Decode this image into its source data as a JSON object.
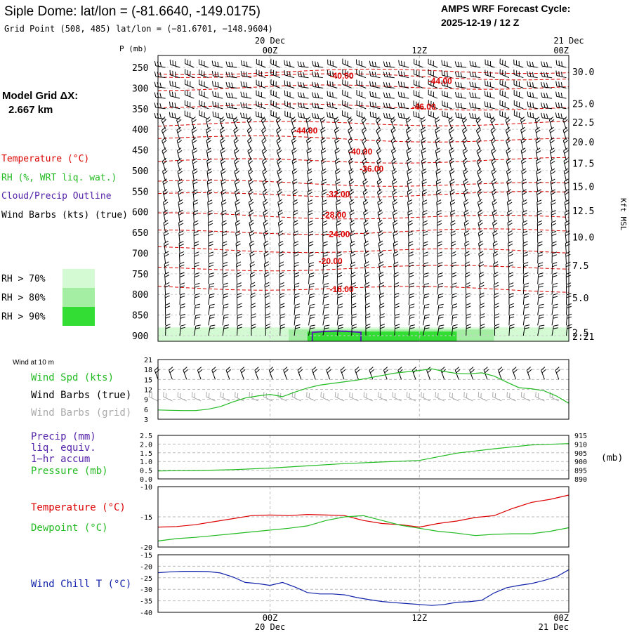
{
  "header": {
    "title": "Siple Dome:  lat/lon = (-81.6640, -149.0175)",
    "subtitle": "Grid Point (508, 485) lat/lon = (−81.6701, −148.9604)",
    "cycle_line1": "AMPS WRF Forecast Cycle:",
    "cycle_line2": "2025-12-19 / 12  Z"
  },
  "model_grid": {
    "label": "Model Grid ΔX:",
    "value": "2.667 km"
  },
  "legend": {
    "temperature": "Temperature (°C)",
    "rh": "RH (%, WRT liq. wat.)",
    "cloud": "Cloud/Precip Outline",
    "wind": "Wind Barbs (kts) (true)",
    "rh70": "RH > 70%",
    "rh80": "RH > 80%",
    "rh90": "RH > 90%"
  },
  "time_axis": {
    "top_labels": [
      {
        "date": "20 Dec",
        "time": "00Z",
        "t": 12
      },
      {
        "date": "",
        "time": "12Z",
        "t": 24
      },
      {
        "date": "21 Dec",
        "time": "00Z",
        "t": 36
      }
    ],
    "bottom_labels": [
      {
        "time": "00Z",
        "date": "20 Dec",
        "t": 12
      },
      {
        "time": "12Z",
        "date": "",
        "t": 24
      },
      {
        "time": "00Z",
        "date": "21 Dec",
        "t": 36
      }
    ]
  },
  "colors": {
    "temp": "#dd0000",
    "green": "#22bb22",
    "purple": "#5522aa",
    "blue": "#1122aa",
    "grey": "#aaaaaa",
    "rh70": "#d4fad4",
    "rh80": "#a4eea4",
    "rh90": "#33dd33"
  },
  "chart_data": [
    {
      "type": "contour",
      "name": "time-height cross section",
      "ylabel": "P (mb)",
      "y2label": "Kft MSL",
      "xlim": [
        3,
        36
      ],
      "ylim": [
        250,
        900
      ],
      "pressure_ticks": [
        "250",
        "300",
        "350",
        "400",
        "450",
        "500",
        "550",
        "600",
        "650",
        "700",
        "750",
        "800",
        "850",
        "900"
      ],
      "height_ticks": [
        {
          "label": "30.0",
          "p": 260
        },
        {
          "label": "25.0",
          "p": 338
        },
        {
          "label": "22.5",
          "p": 383
        },
        {
          "label": "20.0",
          "p": 430
        },
        {
          "label": "17.5",
          "p": 482
        },
        {
          "label": "15.0",
          "p": 538
        },
        {
          "label": "12.5",
          "p": 597
        },
        {
          "label": "10.0",
          "p": 661
        },
        {
          "label": "7.5",
          "p": 730
        },
        {
          "label": "5.0",
          "p": 808
        },
        {
          "label": "2.5",
          "p": 892
        },
        {
          "label": "2.21",
          "p": 902
        }
      ],
      "contour_labels": [
        {
          "text": "-40.00",
          "t": 16.8,
          "p": 270
        },
        {
          "text": "-44.00",
          "t": 24.7,
          "p": 283
        },
        {
          "text": "-46.00",
          "t": 23.4,
          "p": 345
        },
        {
          "text": "-44.00",
          "t": 13.9,
          "p": 403
        },
        {
          "text": "-40.00",
          "t": 18.3,
          "p": 454
        },
        {
          "text": "-36.00",
          "t": 19.2,
          "p": 496
        },
        {
          "text": "-32.00",
          "t": 16.5,
          "p": 557
        },
        {
          "text": "-28.00",
          "t": 16.2,
          "p": 607
        },
        {
          "text": "-24.00",
          "t": 16.5,
          "p": 654
        },
        {
          "text": "-20.00",
          "t": 15.9,
          "p": 720
        },
        {
          "text": "-16.00",
          "t": 16.8,
          "p": 788
        }
      ],
      "isotherm_pressures": [
        262,
        268,
        300,
        342,
        388,
        420,
        478,
        528,
        560,
        608,
        650,
        690,
        738,
        782
      ],
      "rh_band": {
        "from_t": 3,
        "to_t": 36,
        "p_top": 880,
        "p_bottom": 905
      },
      "cloud_outline": {
        "from_t": 15.4,
        "to_t": 19.3
      }
    },
    {
      "type": "line",
      "name": "wind at 10 m",
      "label": "Wind at 10 m",
      "series_labels": {
        "spd": "Wind Spd (kts)",
        "barbs": "Wind Barbs (true)",
        "grid": "Wind Barbs (grid)"
      },
      "ylim": [
        3,
        21
      ],
      "yticks": [
        "3",
        "6",
        "9",
        "12",
        "15",
        "18",
        "21"
      ],
      "t": [
        3,
        4,
        5,
        6,
        7,
        8,
        9,
        10,
        11,
        12,
        13,
        14,
        15,
        16,
        17,
        18,
        19,
        20,
        21,
        22,
        23,
        24,
        25,
        26,
        27,
        28,
        29,
        30,
        31,
        32,
        33,
        34,
        35,
        36
      ],
      "wind_speed": [
        5.8,
        5.7,
        5.6,
        5.6,
        6.0,
        6.8,
        8.2,
        9.4,
        10.0,
        10.5,
        9.8,
        11.2,
        12.4,
        13.3,
        13.8,
        14.3,
        14.8,
        15.5,
        16.2,
        16.9,
        17.3,
        17.7,
        18.2,
        17.4,
        16.8,
        16.7,
        17.0,
        16.0,
        14.2,
        12.5,
        12.2,
        11.6,
        10.0,
        7.8
      ]
    },
    {
      "type": "line",
      "name": "precip and pressure",
      "labels": {
        "precip": "Precip (mm)",
        "liq": "liq. equiv.",
        "accum": "1−hr accum",
        "pressure": "Pressure (mb)",
        "unit": "(mb)"
      },
      "ylim": [
        0,
        2.5
      ],
      "yticks": [
        "0.0",
        "0.5",
        "1.0",
        "1.5",
        "2.0",
        "2.5"
      ],
      "y2lim": [
        890,
        915
      ],
      "y2ticks": [
        "890",
        "895",
        "900",
        "905",
        "910",
        "915"
      ],
      "t": [
        3,
        6,
        9,
        12,
        15,
        18,
        21,
        24,
        27,
        30,
        33,
        36
      ],
      "pressure_mb": [
        894.6,
        894.8,
        895.3,
        896.2,
        897.5,
        898.8,
        899.7,
        900.6,
        904.8,
        907.3,
        909.5,
        910.3
      ]
    },
    {
      "type": "line",
      "name": "temperature and dewpoint",
      "labels": {
        "temp": "Temperature (°C)",
        "dew": "Dewpoint (°C)"
      },
      "ylim": [
        -20,
        -10
      ],
      "yticks": [
        {
          "v": -10,
          "label": "-10"
        },
        {
          "v": -15,
          "label": "-15"
        },
        {
          "v": -20,
          "label": "-20"
        }
      ],
      "t": [
        3,
        4.5,
        6,
        7.5,
        9,
        10.5,
        12,
        13.5,
        15,
        16.5,
        18,
        19.5,
        21,
        22.5,
        24,
        25.5,
        27,
        28.5,
        30,
        31.5,
        33,
        34.5,
        36
      ],
      "temperature": [
        -16.7,
        -16.6,
        -16.3,
        -15.8,
        -15.3,
        -14.8,
        -14.7,
        -14.8,
        -14.6,
        -14.7,
        -14.8,
        -15.6,
        -16.1,
        -16.3,
        -16.7,
        -16.1,
        -15.7,
        -15.1,
        -14.8,
        -13.6,
        -12.6,
        -12.1,
        -11.4
      ],
      "dewpoint": [
        -19.0,
        -18.6,
        -18.4,
        -18.1,
        -17.8,
        -17.5,
        -17.2,
        -16.9,
        -16.5,
        -15.6,
        -15.0,
        -14.8,
        -15.6,
        -16.4,
        -16.9,
        -17.4,
        -17.7,
        -18.1,
        -17.9,
        -17.8,
        -17.8,
        -17.4,
        -16.8
      ]
    },
    {
      "type": "line",
      "name": "wind chill",
      "labels": {
        "wc": "Wind Chill T (°C)"
      },
      "ylim": [
        -40,
        -15
      ],
      "yticks": [
        "-15",
        "-20",
        "-25",
        "-30",
        "-35",
        "-40"
      ],
      "t": [
        3,
        4,
        5,
        6,
        7,
        8,
        9,
        10,
        11,
        12,
        13,
        14,
        15,
        16,
        17,
        18,
        19,
        20,
        21,
        22,
        23,
        24,
        25,
        26,
        27,
        28,
        29,
        30,
        31,
        32,
        33,
        34,
        35,
        36
      ],
      "wind_chill": [
        -22.8,
        -22.4,
        -22.2,
        -22.2,
        -22.3,
        -22.9,
        -24.6,
        -27.0,
        -27.5,
        -28.3,
        -27.0,
        -29.0,
        -31.4,
        -32.0,
        -32.0,
        -32.4,
        -33.6,
        -34.5,
        -35.3,
        -35.8,
        -36.2,
        -36.6,
        -37.0,
        -36.6,
        -35.6,
        -35.4,
        -34.8,
        -31.6,
        -29.3,
        -28.3,
        -27.5,
        -26.2,
        -24.6,
        -21.5
      ]
    }
  ]
}
